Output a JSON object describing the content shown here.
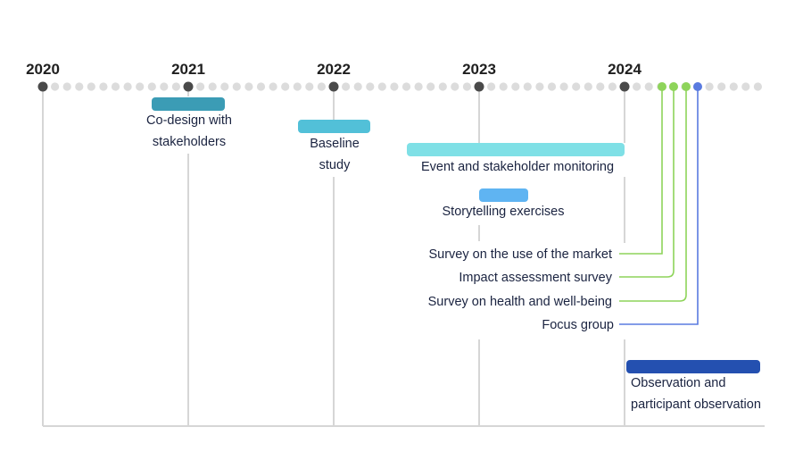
{
  "years": [
    {
      "label": "2020",
      "value": 2020
    },
    {
      "label": "2021",
      "value": 2021
    },
    {
      "label": "2022",
      "value": 2022
    },
    {
      "label": "2023",
      "value": 2023
    },
    {
      "label": "2024",
      "value": 2024
    }
  ],
  "colors": {
    "axis_dot": "#dcdcdc",
    "year_dot": "#4a4a4a",
    "vertical_line": "#d6d6d6",
    "survey_green": "#8ed45a",
    "focus_blue": "#5a7be0",
    "label_text": "#1a2340"
  },
  "bars": [
    {
      "id": "co-design",
      "lines": [
        "Co-design with",
        "stakeholders"
      ],
      "start": 2020.75,
      "end": 2021.25,
      "color": "#3b9cb5"
    },
    {
      "id": "baseline",
      "lines": [
        "Baseline",
        "study"
      ],
      "start": 2021.75,
      "end": 2022.25,
      "color": "#52c0d8"
    },
    {
      "id": "event-monitoring",
      "lines": [
        "Event and stakeholder monitoring"
      ],
      "start": 2022.5,
      "end": 2024.0,
      "color": "#7fe0e6"
    },
    {
      "id": "storytelling",
      "lines": [
        "Storytelling exercises"
      ],
      "start": 2023.0,
      "end": 2023.33,
      "color": "#5fb4f2"
    },
    {
      "id": "observation",
      "lines": [
        "Observation and",
        "participant observation"
      ],
      "start": 2024.0,
      "end": 2024.92,
      "color": "#2450b0"
    }
  ],
  "point_activities": [
    {
      "id": "survey-market",
      "label": "Survey on the use of the market",
      "date": 2024.25,
      "group": "green"
    },
    {
      "id": "impact-survey",
      "label": "Impact assessment survey",
      "date": 2024.33,
      "group": "green"
    },
    {
      "id": "health-survey",
      "label": "Survey on health and well-being",
      "date": 2024.42,
      "group": "green"
    },
    {
      "id": "focus-group",
      "label": "Focus group",
      "date": 2024.5,
      "group": "blue"
    }
  ]
}
